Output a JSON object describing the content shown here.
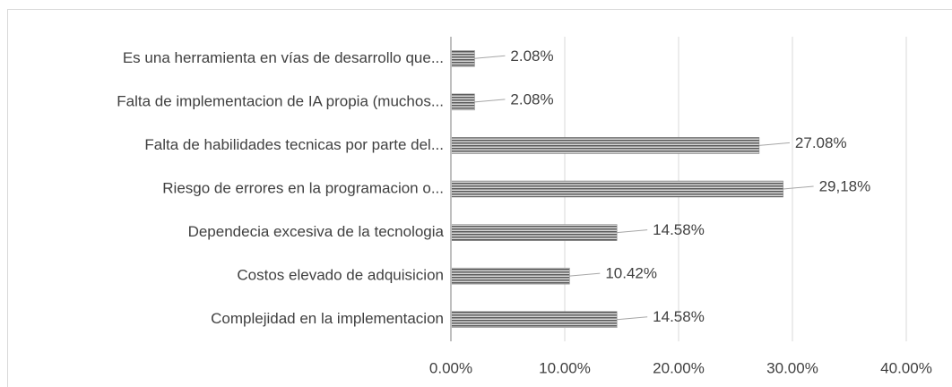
{
  "chart_data": {
    "type": "hbar",
    "categories": [
      "Es una herramienta en vías de desarrollo que...",
      "Falta de implementacion de IA propia (muchos...",
      "Falta de habilidades tecnicas por parte del...",
      "Riesgo de errores en la programacion o...",
      "Dependecia excesiva de la tecnologia",
      "Costos elevado de adquisicion",
      "Complejidad en la implementacion"
    ],
    "values": [
      2.08,
      2.08,
      27.08,
      29.18,
      14.58,
      10.42,
      14.58
    ],
    "value_labels": [
      "2.08%",
      "2.08%",
      "27.08%",
      "29,18%",
      "14.58%",
      "10.42%",
      "14.58%"
    ],
    "color": "#7f7f7f",
    "xlim": [
      0,
      40
    ],
    "xticks": [
      {
        "value": 0,
        "label": "0.00%"
      },
      {
        "value": 10,
        "label": "10.00%"
      },
      {
        "value": 20,
        "label": "20.00%"
      },
      {
        "value": 30,
        "label": "30.00%"
      },
      {
        "value": 40,
        "label": "40.00%"
      }
    ],
    "grid": true
  }
}
